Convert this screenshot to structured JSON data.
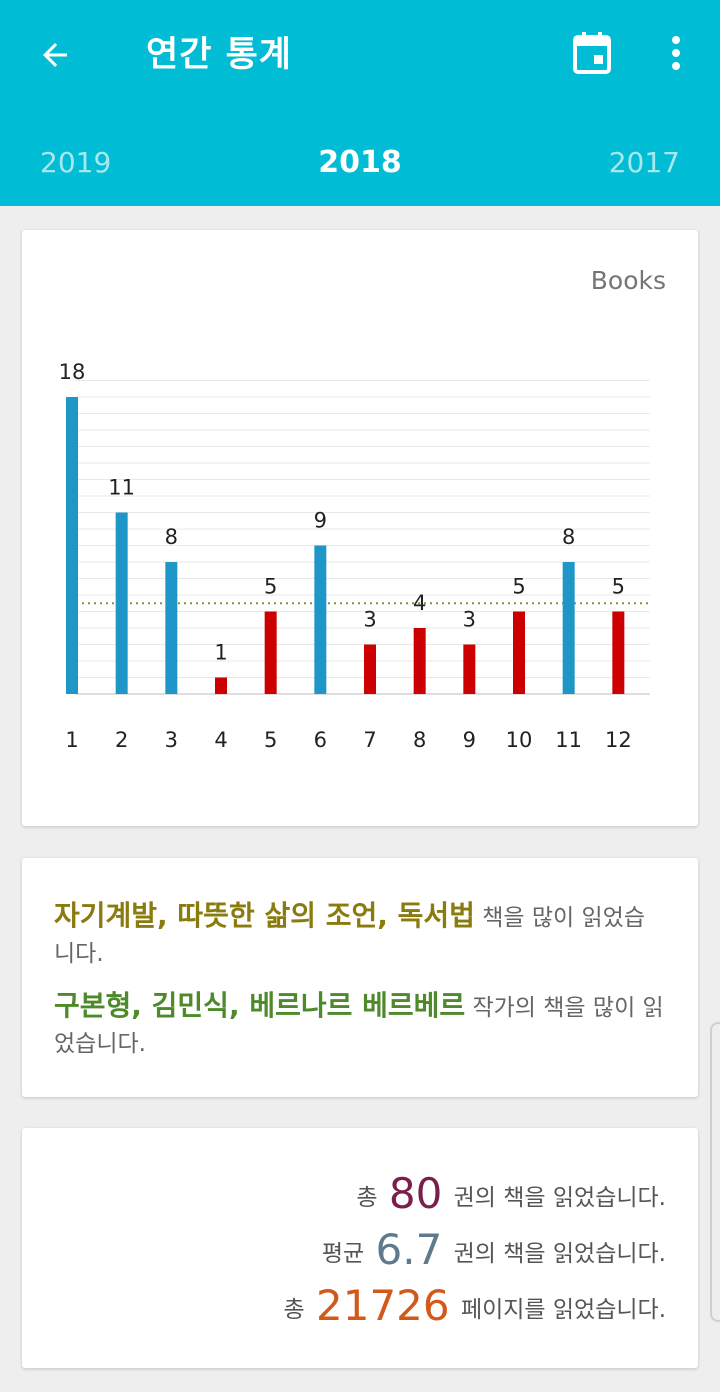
{
  "header": {
    "title": "연간 통계",
    "back_icon": "arrow-left-icon",
    "calendar_icon": "calendar-icon",
    "more_icon": "more-vert-icon"
  },
  "year_selector": {
    "previous": "2019",
    "current": "2018",
    "next": "2017"
  },
  "chart": {
    "unit_label": "Books"
  },
  "chart_data": {
    "type": "bar",
    "categories": [
      "1",
      "2",
      "3",
      "4",
      "5",
      "6",
      "7",
      "8",
      "9",
      "10",
      "11",
      "12"
    ],
    "values": [
      18,
      11,
      8,
      1,
      5,
      9,
      3,
      4,
      3,
      5,
      8,
      5
    ],
    "average": 6.7,
    "ylim": [
      0,
      19
    ],
    "grid": true,
    "colors": {
      "above_average": "#1e96c8",
      "below_average": "#cc0000",
      "average_line": "#8a8f3a",
      "grid": "#e8e8e8"
    }
  },
  "insights": {
    "genres": "자기계발, 따뜻한 삶의 조언, 독서법",
    "genres_suffix": "책을 많이 읽었습니다.",
    "authors": "구본형, 김민식, 베르나르 베르베르",
    "authors_suffix": "작가의 책을 많이 읽었습니다."
  },
  "summary": {
    "total_prefix": "총",
    "total_books": "80",
    "total_suffix": "권의 책을 읽었습니다.",
    "avg_prefix": "평균",
    "avg_books": "6.7",
    "avg_suffix": "권의 책을 읽었습니다.",
    "pages_prefix": "총",
    "total_pages": "21726",
    "pages_suffix": "페이지를 읽었습니다."
  }
}
